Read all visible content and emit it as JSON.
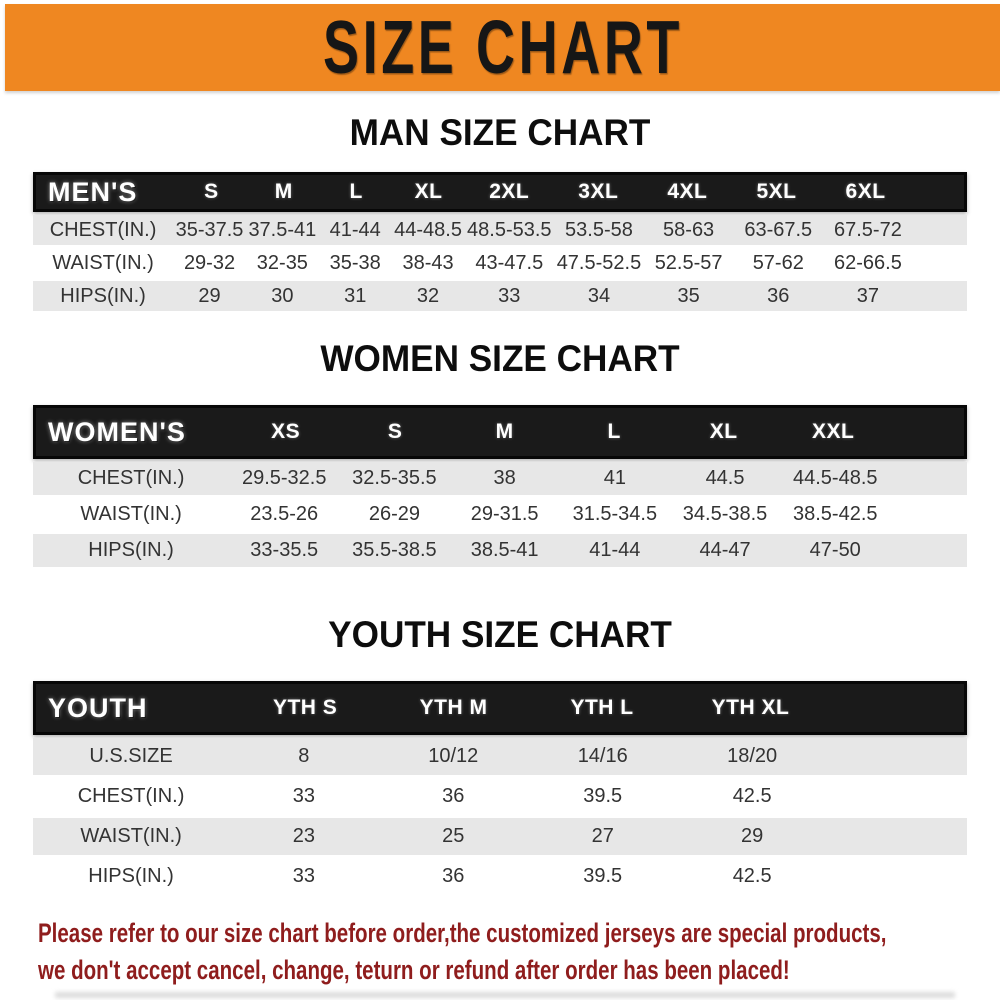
{
  "banner": {
    "title": "SIZE CHART"
  },
  "sections": [
    {
      "id": "men",
      "heading": "MAN SIZE CHART",
      "header_label": "MEN'S",
      "columns": [
        "S",
        "M",
        "L",
        "XL",
        "2XL",
        "3XL",
        "4XL",
        "5XL",
        "6XL"
      ],
      "rows": [
        {
          "label": "CHEST(IN.)",
          "values": [
            "35-37.5",
            "37.5-41",
            "41-44",
            "44-48.5",
            "48.5-53.5",
            "53.5-58",
            "58-63",
            "63-67.5",
            "67.5-72"
          ]
        },
        {
          "label": "WAIST(IN.)",
          "values": [
            "29-32",
            "32-35",
            "35-38",
            "38-43",
            "43-47.5",
            "47.5-52.5",
            "52.5-57",
            "57-62",
            "62-66.5"
          ]
        },
        {
          "label": "HIPS(IN.)",
          "values": [
            "29",
            "30",
            "31",
            "32",
            "33",
            "34",
            "35",
            "36",
            "37"
          ]
        }
      ]
    },
    {
      "id": "women",
      "heading": "WOMEN SIZE CHART",
      "header_label": "WOMEN'S",
      "columns": [
        "XS",
        "S",
        "M",
        "L",
        "XL",
        "XXL"
      ],
      "rows": [
        {
          "label": "CHEST(IN.)",
          "values": [
            "29.5-32.5",
            "32.5-35.5",
            "38",
            "41",
            "44.5",
            "44.5-48.5"
          ]
        },
        {
          "label": "WAIST(IN.)",
          "values": [
            "23.5-26",
            "26-29",
            "29-31.5",
            "31.5-34.5",
            "34.5-38.5",
            "38.5-42.5"
          ]
        },
        {
          "label": "HIPS(IN.)",
          "values": [
            "33-35.5",
            "35.5-38.5",
            "38.5-41",
            "41-44",
            "44-47",
            "47-50"
          ]
        }
      ]
    },
    {
      "id": "youth",
      "heading": "YOUTH SIZE CHART",
      "header_label": "YOUTH",
      "columns": [
        "YTH S",
        "YTH M",
        "YTH L",
        "YTH XL"
      ],
      "rows": [
        {
          "label": "U.S.SIZE",
          "values": [
            "8",
            "10/12",
            "14/16",
            "18/20"
          ]
        },
        {
          "label": "CHEST(IN.)",
          "values": [
            "33",
            "36",
            "39.5",
            "42.5"
          ]
        },
        {
          "label": "WAIST(IN.)",
          "values": [
            "23",
            "25",
            "27",
            "29"
          ]
        },
        {
          "label": "HIPS(IN.)",
          "values": [
            "33",
            "36",
            "39.5",
            "42.5"
          ]
        }
      ]
    }
  ],
  "footer": {
    "line1": "Please refer to our size chart before order,the customized jerseys are special products,",
    "line2": "we don't accept cancel, change, teturn or refund after order has been placed!"
  },
  "colors": {
    "banner_bg": "#EF8721",
    "header_bar": "#1A1A1A",
    "row_alt": "#E7E7E7",
    "footer_text": "#8F1D1D"
  }
}
